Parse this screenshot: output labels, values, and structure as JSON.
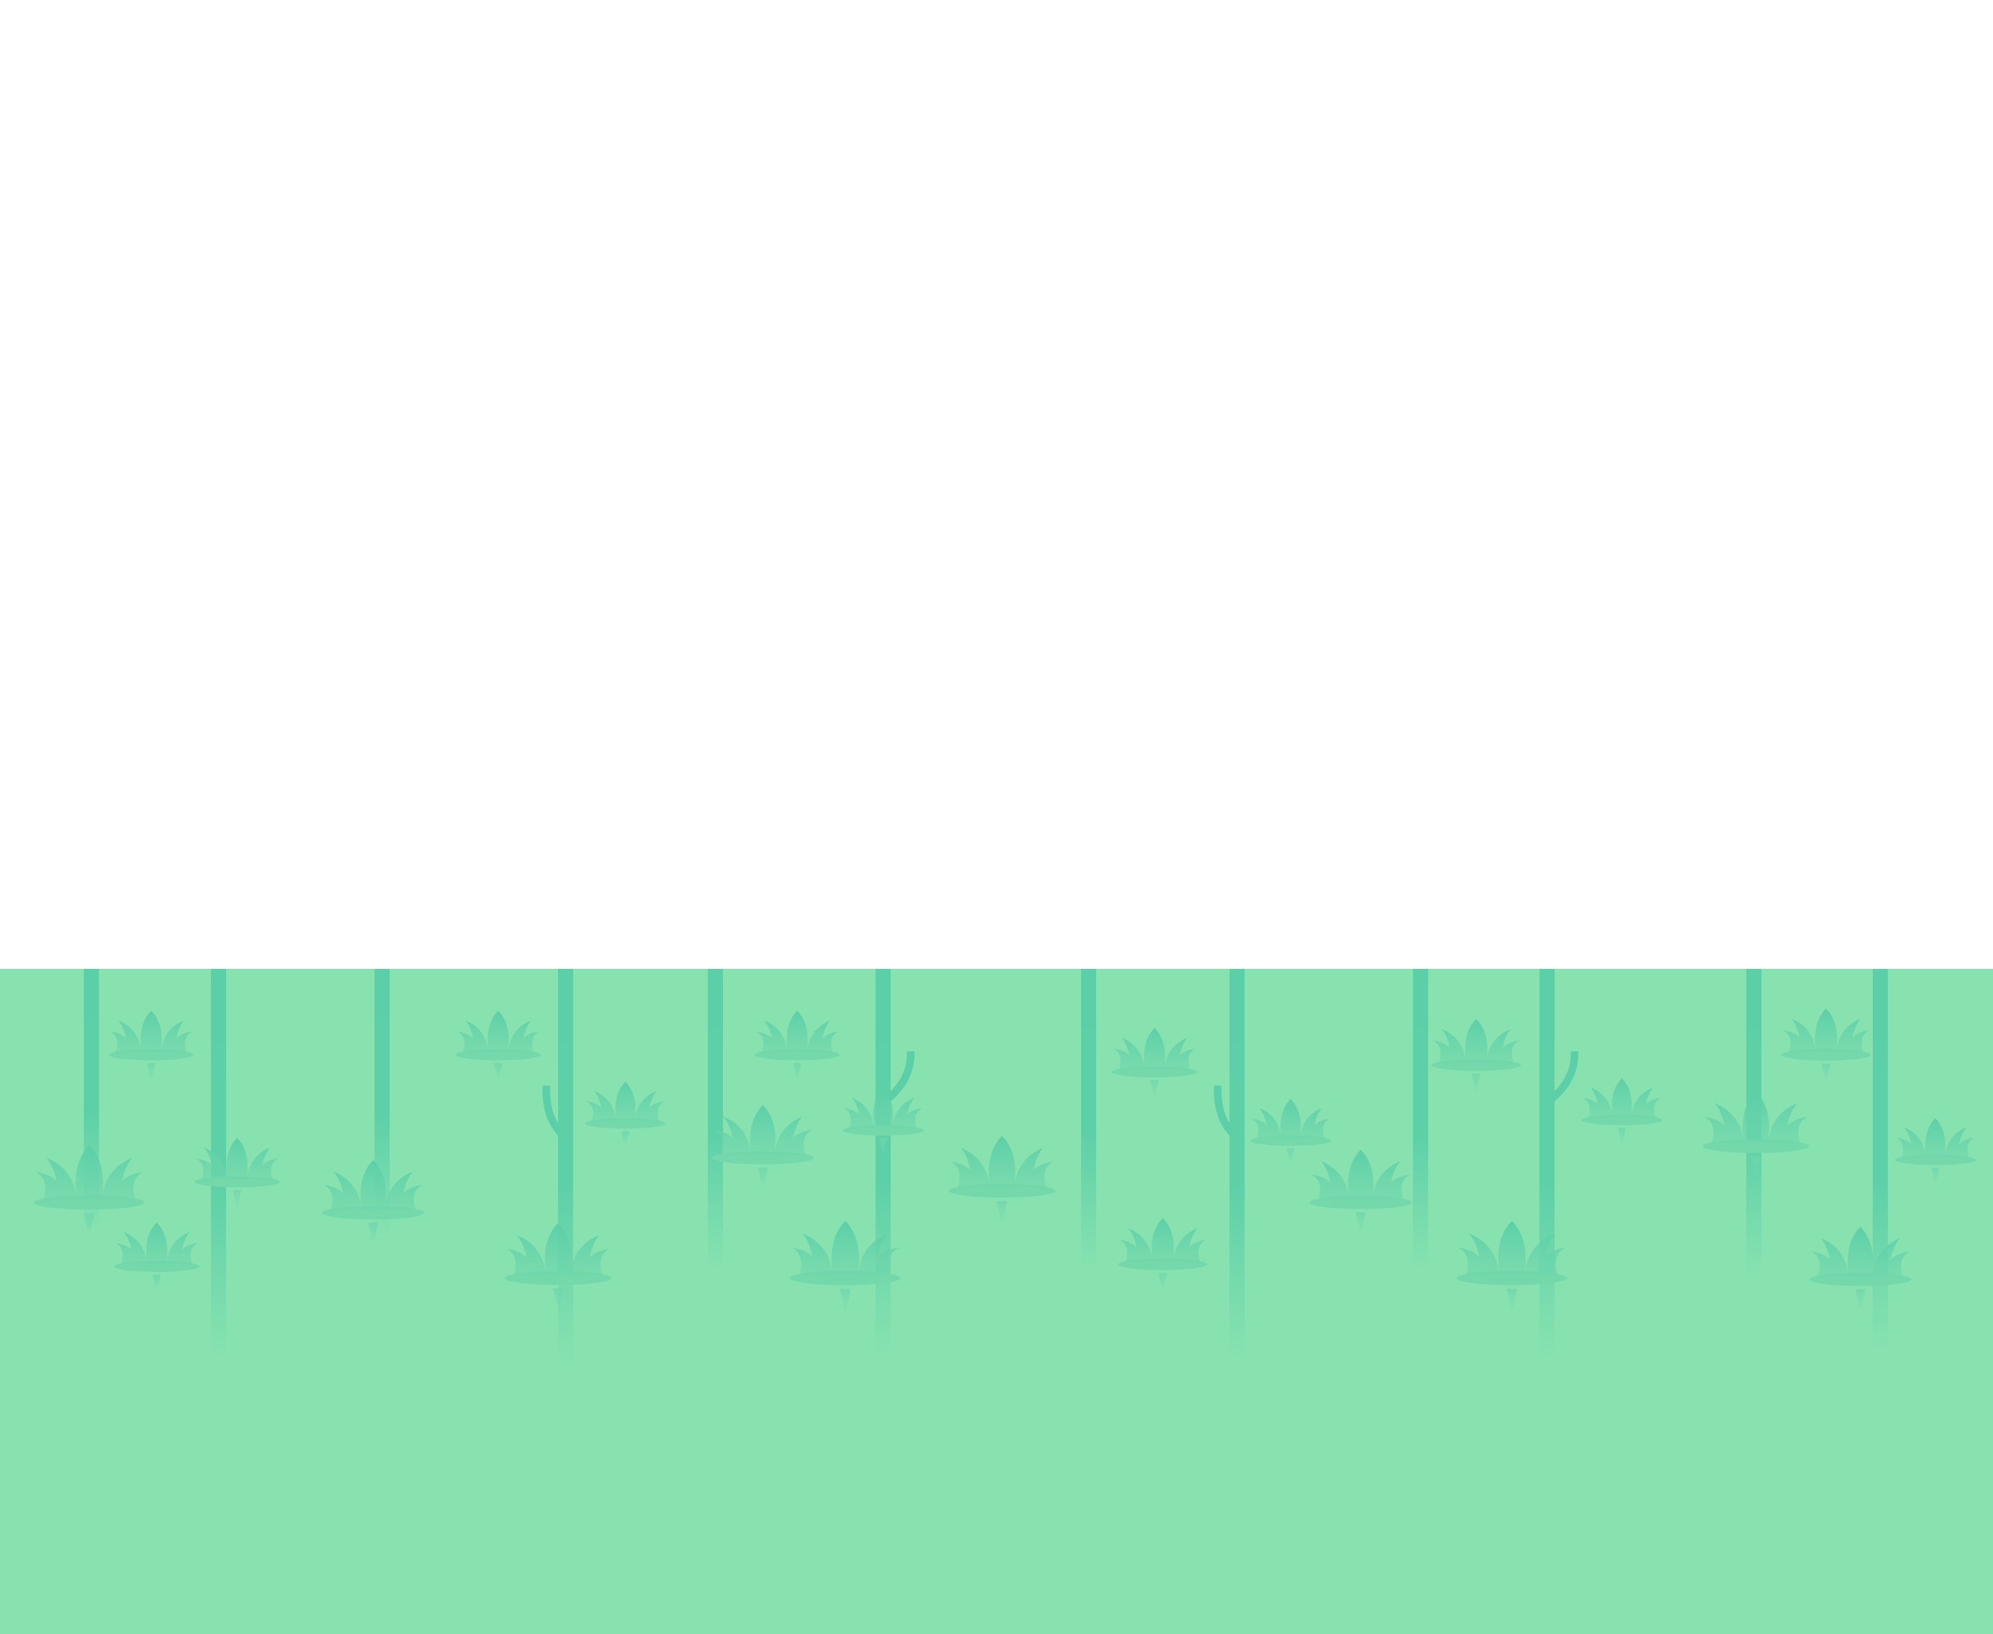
{
  "scene": {
    "sky_color": "#ffffff",
    "ground_color": "#88e2b0",
    "plant_color": "#5ccfa8",
    "shadow_color": "#74d8ab"
  }
}
